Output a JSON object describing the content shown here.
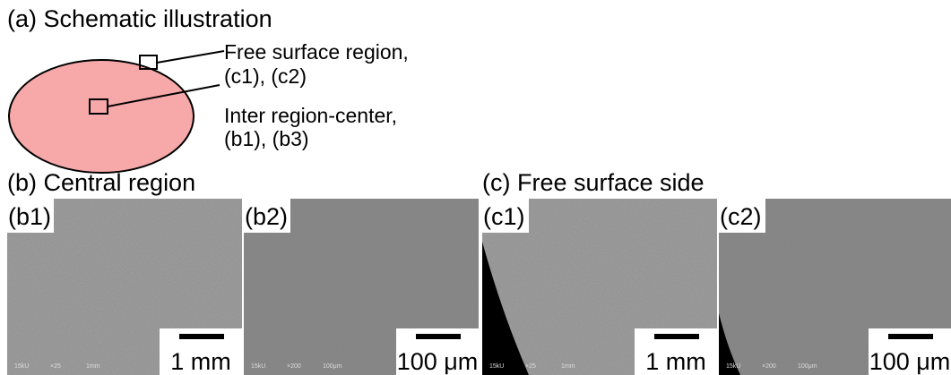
{
  "header": {
    "title": "(a) Schematic illustration"
  },
  "schematic": {
    "labels": [
      {
        "lines": [
          "Free surface region,",
          "(c1), (c2)"
        ]
      },
      {
        "lines": [
          "Inter region-center,",
          "(b1), (b3)"
        ]
      }
    ]
  },
  "sections": [
    {
      "title": "(b) Central region",
      "panels": [
        {
          "label": "(b1)",
          "scale_bar": "1 mm",
          "info": [
            "15kU",
            "×25",
            "1mm"
          ]
        },
        {
          "label": "(b2)",
          "scale_bar": "100 μm",
          "info": [
            "15kU",
            "×200",
            "100μm"
          ]
        }
      ]
    },
    {
      "title": "(c) Free surface side",
      "panels": [
        {
          "label": "(c1)",
          "scale_bar": "1 mm",
          "info": [
            "15kU",
            "×25",
            "1mm"
          ]
        },
        {
          "label": "(c2)",
          "scale_bar": "100 μm",
          "info": [
            "15kU",
            "×200",
            "100μm"
          ]
        }
      ]
    }
  ]
}
